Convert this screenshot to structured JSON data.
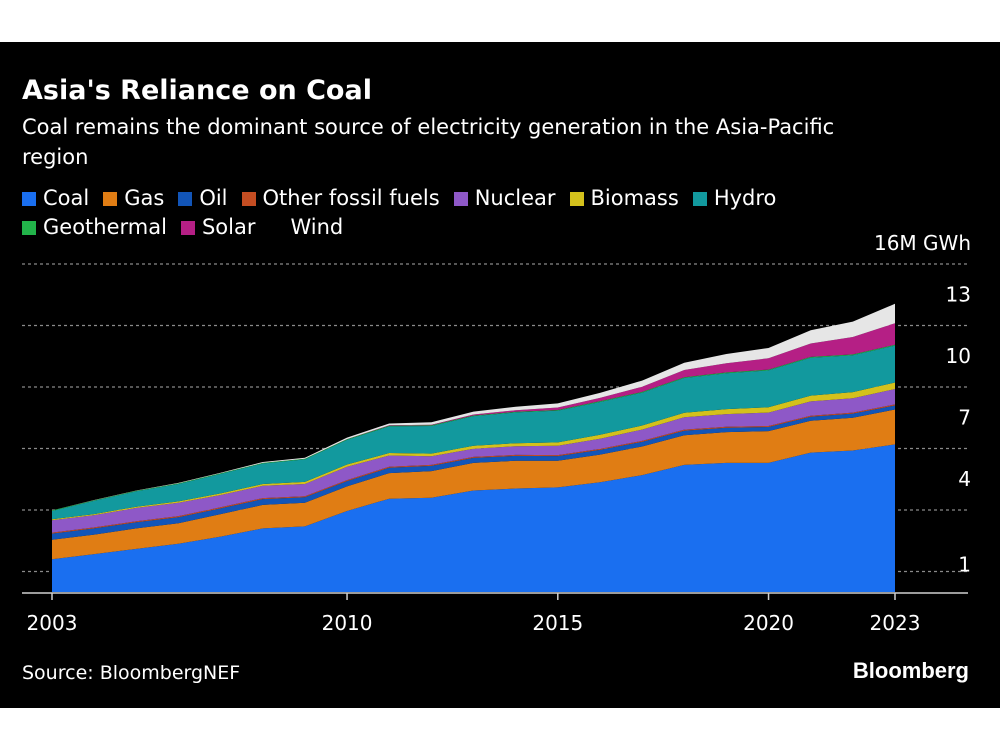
{
  "title": "Asia's Reliance on Coal",
  "subtitle": "Coal remains the dominant source of electricity generation in the Asia-Pacific region",
  "source": "Source: BloombergNEF",
  "brand": "Bloomberg",
  "colors": {
    "background": "#000000",
    "grid": "#8a8a8a"
  },
  "chart_data": {
    "type": "area",
    "stacked": true,
    "title": "Asia's Reliance on Coal",
    "subtitle": "Coal remains the dominant source of electricity generation in the Asia-Pacific region",
    "ylabel": "16M GWh",
    "x": [
      2003,
      2004,
      2005,
      2006,
      2007,
      2008,
      2009,
      2010,
      2011,
      2012,
      2013,
      2014,
      2015,
      2016,
      2017,
      2018,
      2019,
      2020,
      2021,
      2022,
      2023
    ],
    "x_ticks": [
      "2003",
      "2010",
      "2015",
      "2020",
      "2023"
    ],
    "y_ticks": [
      "1",
      "4",
      "7",
      "10",
      "13",
      "16M GWh"
    ],
    "ylim": [
      0,
      16
    ],
    "grid": true,
    "legend_position": "top",
    "series": [
      {
        "name": "Coal",
        "color": "#1a6ff0",
        "values": [
          1.6,
          1.85,
          2.1,
          2.35,
          2.7,
          3.1,
          3.2,
          3.95,
          4.55,
          4.6,
          4.95,
          5.05,
          5.1,
          5.35,
          5.7,
          6.2,
          6.3,
          6.3,
          6.8,
          6.9,
          7.2
        ]
      },
      {
        "name": "Gas",
        "color": "#e07d14",
        "values": [
          0.95,
          0.95,
          1.0,
          1.0,
          1.1,
          1.15,
          1.15,
          1.2,
          1.25,
          1.3,
          1.35,
          1.35,
          1.3,
          1.35,
          1.4,
          1.45,
          1.5,
          1.55,
          1.55,
          1.6,
          1.7
        ]
      },
      {
        "name": "Oil",
        "color": "#1255b8",
        "values": [
          0.3,
          0.3,
          0.3,
          0.3,
          0.28,
          0.28,
          0.27,
          0.26,
          0.26,
          0.25,
          0.24,
          0.24,
          0.23,
          0.23,
          0.22,
          0.22,
          0.21,
          0.2,
          0.2,
          0.2,
          0.2
        ]
      },
      {
        "name": "Other fossil fuels",
        "color": "#c44d22",
        "values": [
          0.05,
          0.05,
          0.05,
          0.05,
          0.05,
          0.05,
          0.05,
          0.05,
          0.05,
          0.05,
          0.05,
          0.05,
          0.05,
          0.05,
          0.05,
          0.05,
          0.05,
          0.05,
          0.05,
          0.05,
          0.05
        ]
      },
      {
        "name": "Nuclear",
        "color": "#8e58c7",
        "values": [
          0.6,
          0.6,
          0.65,
          0.65,
          0.6,
          0.6,
          0.6,
          0.65,
          0.55,
          0.42,
          0.4,
          0.42,
          0.45,
          0.5,
          0.55,
          0.6,
          0.62,
          0.65,
          0.7,
          0.7,
          0.75
        ]
      },
      {
        "name": "Biomass",
        "color": "#d4c11c",
        "values": [
          0.05,
          0.05,
          0.06,
          0.07,
          0.08,
          0.09,
          0.1,
          0.11,
          0.12,
          0.13,
          0.14,
          0.15,
          0.17,
          0.19,
          0.2,
          0.22,
          0.24,
          0.26,
          0.28,
          0.3,
          0.32
        ]
      },
      {
        "name": "Hydro",
        "color": "#12999e",
        "values": [
          0.4,
          0.65,
          0.75,
          0.85,
          0.95,
          1.0,
          1.1,
          1.2,
          1.3,
          1.35,
          1.45,
          1.5,
          1.55,
          1.6,
          1.6,
          1.7,
          1.75,
          1.8,
          1.85,
          1.8,
          1.8
        ]
      },
      {
        "name": "Geothermal",
        "color": "#22b34a",
        "values": [
          0.03,
          0.03,
          0.03,
          0.03,
          0.03,
          0.03,
          0.03,
          0.03,
          0.03,
          0.03,
          0.03,
          0.03,
          0.03,
          0.04,
          0.04,
          0.04,
          0.04,
          0.04,
          0.04,
          0.04,
          0.04
        ]
      },
      {
        "name": "Solar",
        "color": "#b51f85",
        "values": [
          0.0,
          0.0,
          0.0,
          0.0,
          0.0,
          0.0,
          0.0,
          0.01,
          0.02,
          0.03,
          0.05,
          0.08,
          0.12,
          0.16,
          0.25,
          0.35,
          0.45,
          0.55,
          0.65,
          0.85,
          1.05
        ]
      },
      {
        "name": "Wind",
        "color": "#e6e6e6",
        "values": [
          0.0,
          0.01,
          0.01,
          0.02,
          0.03,
          0.04,
          0.05,
          0.07,
          0.09,
          0.12,
          0.14,
          0.17,
          0.2,
          0.24,
          0.3,
          0.35,
          0.45,
          0.5,
          0.65,
          0.75,
          0.95
        ]
      }
    ]
  }
}
